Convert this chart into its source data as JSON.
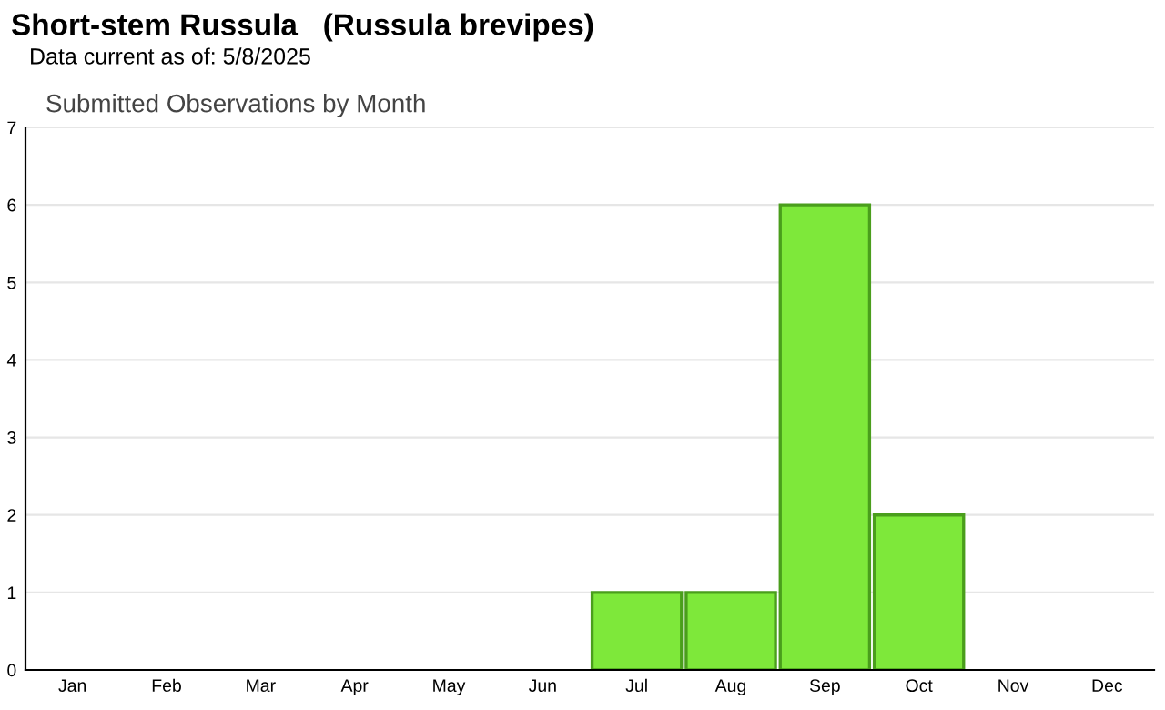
{
  "chart_data": {
    "type": "bar",
    "title": "Short-stem Russula   (Russula brevipes)",
    "subtitle": "Data current as of: 5/8/2025",
    "annotations": [
      "Submitted Observations by Month"
    ],
    "categories": [
      "Jan",
      "Feb",
      "Mar",
      "Apr",
      "May",
      "Jun",
      "Jul",
      "Aug",
      "Sep",
      "Oct",
      "Nov",
      "Dec"
    ],
    "values": [
      0,
      0,
      0,
      0,
      0,
      0,
      1,
      1,
      6,
      2,
      0,
      0
    ],
    "color": "#7ee83a",
    "ylim": [
      0,
      7
    ],
    "yticks": [
      0,
      1,
      2,
      3,
      4,
      5,
      6,
      7
    ],
    "grid": "y",
    "legend": false
  }
}
